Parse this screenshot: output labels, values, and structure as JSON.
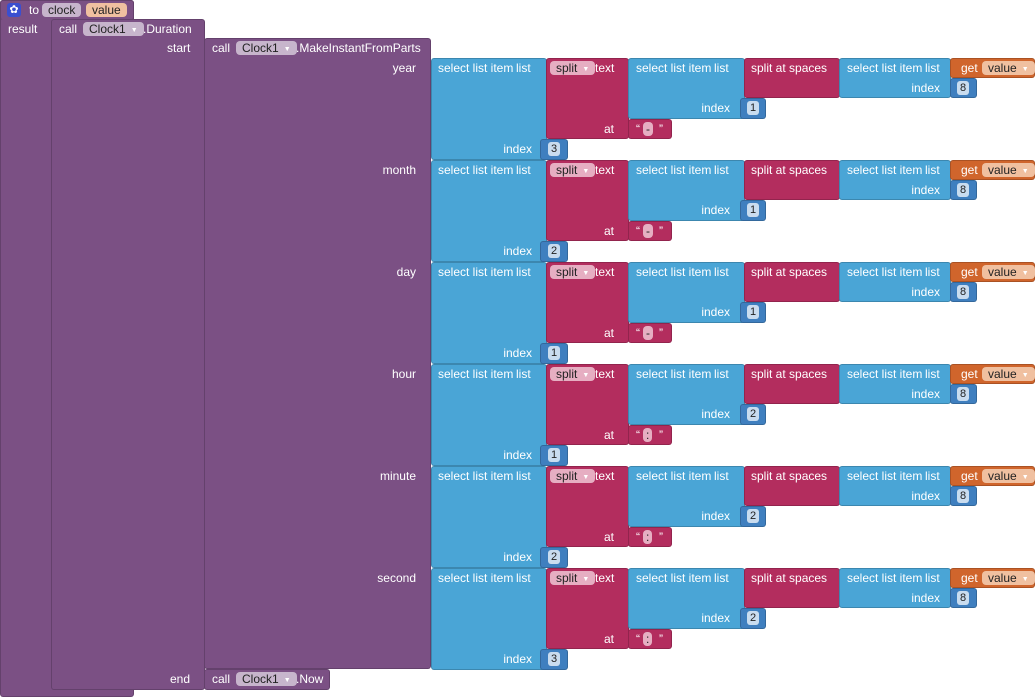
{
  "procedure": {
    "to_label": "to",
    "name": "clock",
    "param": "value",
    "result_label": "result",
    "gear_icon": "gear-icon"
  },
  "duration": {
    "call_label": "call",
    "component": "Clock1",
    "method": ".Duration",
    "start_label": "start",
    "end_label": "end"
  },
  "make_instant": {
    "call_label": "call",
    "component": "Clock1",
    "method": ".MakeInstantFromParts"
  },
  "now": {
    "call_label": "call",
    "component": "Clock1",
    "method": ".Now"
  },
  "labels": {
    "select_list_item": "select list item",
    "list": "list",
    "index": "index",
    "split": "split",
    "text": "text",
    "at": "at",
    "split_at_spaces": "split at spaces",
    "get": "get",
    "var": "value",
    "open_quote": "“",
    "close_quote": "”"
  },
  "rows": [
    {
      "param": "year",
      "outer_index": "3",
      "inner_index": "1",
      "separator": "-",
      "source_index": "8"
    },
    {
      "param": "month",
      "outer_index": "2",
      "inner_index": "1",
      "separator": "-",
      "source_index": "8"
    },
    {
      "param": "day",
      "outer_index": "1",
      "inner_index": "1",
      "separator": "-",
      "source_index": "8"
    },
    {
      "param": "hour",
      "outer_index": "1",
      "inner_index": "2",
      "separator": ":",
      "source_index": "8"
    },
    {
      "param": "minute",
      "outer_index": "2",
      "inner_index": "2",
      "separator": ":",
      "source_index": "8"
    },
    {
      "param": "second",
      "outer_index": "3",
      "inner_index": "2",
      "separator": ":",
      "source_index": "8"
    }
  ],
  "colors": {
    "procedure": "#7b5084",
    "list": "#4aa5d6",
    "text": "#b32d5e",
    "variable": "#d0652c",
    "math": "#3f7fbf"
  }
}
